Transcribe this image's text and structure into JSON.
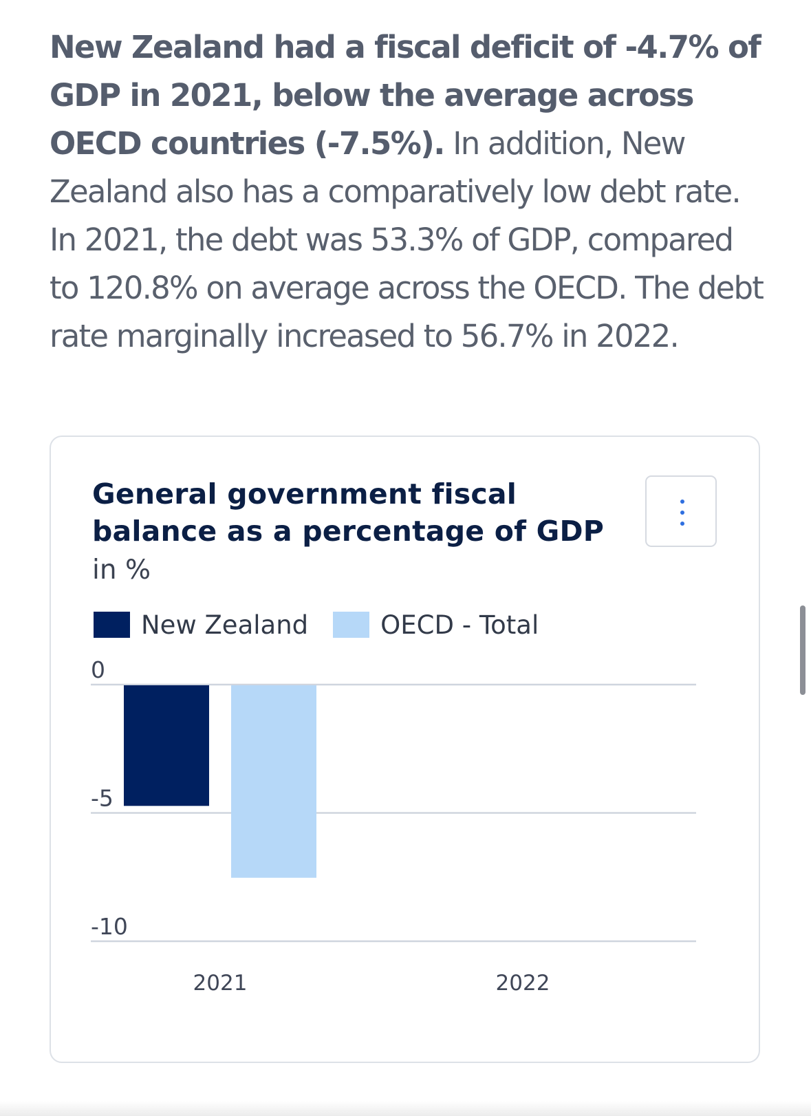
{
  "intro": {
    "bold": "New Zealand had a fiscal deficit of -4.7% of GDP in 2021, below the average across OECD countries (-7.5%).",
    "rest": " In addition, New Zealand also has a comparatively low debt rate. In 2021, the debt was 53.3% of GDP, compared to 120.8% on average across the OECD. The debt rate marginally increased to 56.7% in 2022."
  },
  "card": {
    "menu_icon": "vertical-ellipsis-icon"
  },
  "chart_data": {
    "type": "bar",
    "title": "General government fiscal balance as a percentage of GDP",
    "subtitle": "in %",
    "categories": [
      "2021",
      "2022"
    ],
    "series": [
      {
        "name": "New Zealand",
        "color": "#002060",
        "values": [
          -4.7,
          null
        ]
      },
      {
        "name": "OECD - Total",
        "color": "#b6d8f8",
        "values": [
          -7.5,
          null
        ]
      }
    ],
    "yticks": [
      0,
      -5,
      -10
    ],
    "ylim": [
      -10,
      0
    ],
    "grid": true,
    "legend_position": "top-left"
  }
}
